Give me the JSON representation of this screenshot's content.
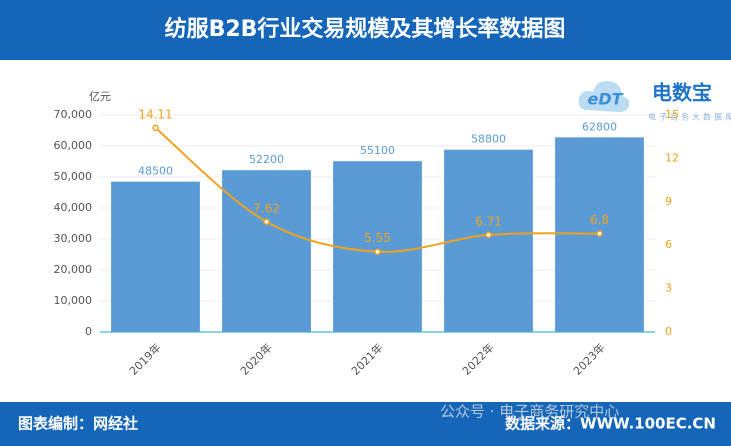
{
  "chart_data": {
    "type": "bar-line",
    "title": "纺服B2B行业交易规模及其增长率数据图",
    "y_unit": "亿元",
    "categories": [
      "2019年",
      "2020年",
      "2021年",
      "2022年",
      "2023年"
    ],
    "series": [
      {
        "type": "bar",
        "color": "#5b9bd5",
        "label_color": "#5b9bd5",
        "values": [
          48500,
          52200,
          55100,
          58800,
          62800
        ]
      },
      {
        "type": "line",
        "axis": "y2",
        "color": "#f0a21f",
        "label_color": "#f0a21f",
        "values": [
          14.11,
          7.62,
          5.55,
          6.71,
          6.8
        ]
      }
    ],
    "ylim": [
      0,
      70000
    ],
    "yticks": [
      0,
      {
        "value": 10000,
        "label": "10,000"
      },
      {
        "value": 20000,
        "label": "20,000"
      },
      {
        "value": 30000,
        "label": "30,000"
      },
      {
        "value": 40000,
        "label": "40,000"
      },
      {
        "value": 50000,
        "label": "50,000"
      },
      {
        "value": 60000,
        "label": "60,000"
      },
      {
        "value": 70000,
        "label": "70,000"
      }
    ],
    "y2lim": [
      0,
      15
    ],
    "y2ticks": [
      0,
      3,
      6,
      9,
      12,
      15
    ],
    "grid": true
  },
  "logo": {
    "name": "电数宝",
    "tagline": "电子商务大数据库",
    "mark": "eDT"
  },
  "footer": {
    "left": "图表编制：网经社",
    "right": "数据来源：WWW.100EC.CN"
  },
  "watermark": "公众号 · 电子商务研究中心"
}
